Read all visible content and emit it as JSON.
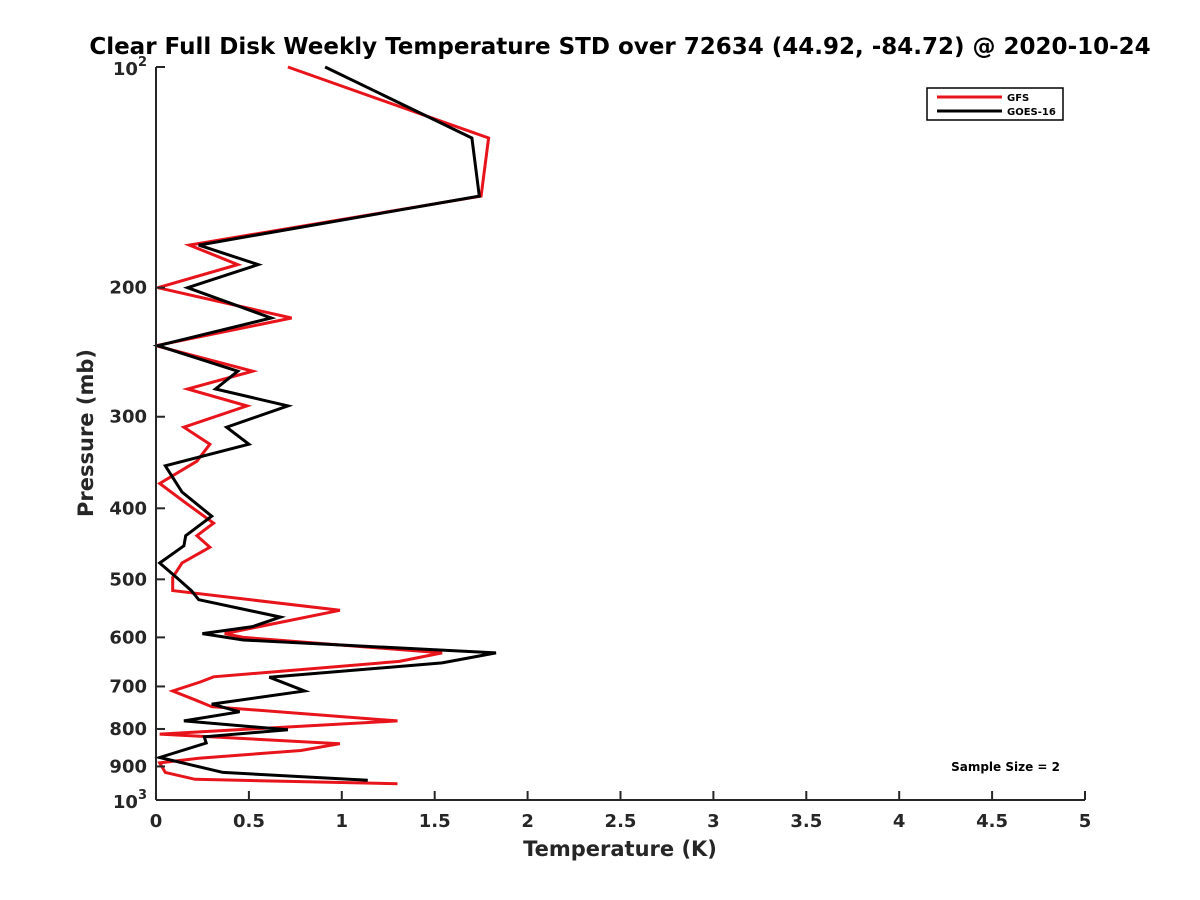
{
  "chart_data": {
    "type": "line",
    "title": "Clear Full Disk Weekly Temperature STD over 72634 (44.92, -84.72) @ 2020-10-24",
    "xlabel": "Temperature (K)",
    "ylabel": "Pressure (mb)",
    "xlim": [
      0,
      5
    ],
    "ylim": [
      100,
      1000
    ],
    "y_scale": "log",
    "y_reversed": true,
    "grid": false,
    "legend_position": "top-right",
    "x_ticks": [
      {
        "value": 0,
        "label": "0"
      },
      {
        "value": 0.5,
        "label": "0.5"
      },
      {
        "value": 1,
        "label": "1"
      },
      {
        "value": 1.5,
        "label": "1.5"
      },
      {
        "value": 2,
        "label": "2"
      },
      {
        "value": 2.5,
        "label": "2.5"
      },
      {
        "value": 3,
        "label": "3"
      },
      {
        "value": 3.5,
        "label": "3.5"
      },
      {
        "value": 4,
        "label": "4"
      },
      {
        "value": 4.5,
        "label": "4.5"
      },
      {
        "value": 5,
        "label": "5"
      }
    ],
    "y_ticks": [
      {
        "value": 100,
        "base": "10",
        "exp": "2"
      },
      {
        "value": 200,
        "label": "200"
      },
      {
        "value": 300,
        "label": "300"
      },
      {
        "value": 400,
        "label": "400"
      },
      {
        "value": 500,
        "label": "500"
      },
      {
        "value": 600,
        "label": "600"
      },
      {
        "value": 700,
        "label": "700"
      },
      {
        "value": 800,
        "label": "800"
      },
      {
        "value": 900,
        "label": "900"
      },
      {
        "value": 1000,
        "base": "10",
        "exp": "3"
      }
    ],
    "series": [
      {
        "name": "GFS",
        "color": "#e8141b",
        "points": [
          [
            0.71,
            100
          ],
          [
            1.79,
            125
          ],
          [
            1.75,
            150
          ],
          [
            0.18,
            175
          ],
          [
            0.44,
            186
          ],
          [
            0.01,
            200
          ],
          [
            0.73,
            220
          ],
          [
            0.0,
            240
          ],
          [
            0.52,
            260
          ],
          [
            0.17,
            275
          ],
          [
            0.49,
            290
          ],
          [
            0.15,
            310
          ],
          [
            0.29,
            327
          ],
          [
            0.22,
            345
          ],
          [
            0.02,
            370
          ],
          [
            0.17,
            395
          ],
          [
            0.31,
            419
          ],
          [
            0.22,
            436
          ],
          [
            0.29,
            452
          ],
          [
            0.14,
            475
          ],
          [
            0.09,
            497
          ],
          [
            0.09,
            518
          ],
          [
            0.99,
            551
          ],
          [
            0.37,
            593
          ],
          [
            0.47,
            600
          ],
          [
            1.54,
            630
          ],
          [
            1.31,
            647
          ],
          [
            0.31,
            679
          ],
          [
            0.24,
            690
          ],
          [
            0.09,
            710
          ],
          [
            0.21,
            730
          ],
          [
            0.3,
            746
          ],
          [
            1.3,
            780
          ],
          [
            0.02,
            813
          ],
          [
            0.99,
            838
          ],
          [
            0.78,
            856
          ],
          [
            0.23,
            877
          ],
          [
            0.02,
            890
          ],
          [
            0.05,
            917
          ],
          [
            0.21,
            937
          ],
          [
            1.3,
            950
          ]
        ]
      },
      {
        "name": "GOES-16",
        "color": "#000000",
        "points": [
          [
            0.91,
            100
          ],
          [
            1.7,
            125
          ],
          [
            1.74,
            150
          ],
          [
            0.23,
            175
          ],
          [
            0.55,
            186
          ],
          [
            0.17,
            200
          ],
          [
            0.62,
            220
          ],
          [
            0.01,
            240
          ],
          [
            0.44,
            260
          ],
          [
            0.32,
            275
          ],
          [
            0.71,
            290
          ],
          [
            0.38,
            310
          ],
          [
            0.5,
            327
          ],
          [
            0.05,
            350
          ],
          [
            0.14,
            380
          ],
          [
            0.3,
            410
          ],
          [
            0.16,
            436
          ],
          [
            0.15,
            450
          ],
          [
            0.02,
            475
          ],
          [
            0.11,
            497
          ],
          [
            0.19,
            518
          ],
          [
            0.23,
            533
          ],
          [
            0.67,
            563
          ],
          [
            0.52,
            580
          ],
          [
            0.25,
            593
          ],
          [
            0.47,
            605
          ],
          [
            1.83,
            630
          ],
          [
            1.54,
            650
          ],
          [
            0.61,
            680
          ],
          [
            0.8,
            710
          ],
          [
            0.3,
            740
          ],
          [
            0.45,
            758
          ],
          [
            0.15,
            780
          ],
          [
            0.71,
            802
          ],
          [
            0.26,
            820
          ],
          [
            0.27,
            836
          ],
          [
            0.02,
            875
          ],
          [
            0.36,
            917
          ],
          [
            1.14,
            940
          ]
        ]
      }
    ],
    "annotations": [
      {
        "text": "Sample Size = 2",
        "position": "bottom-right"
      }
    ]
  }
}
